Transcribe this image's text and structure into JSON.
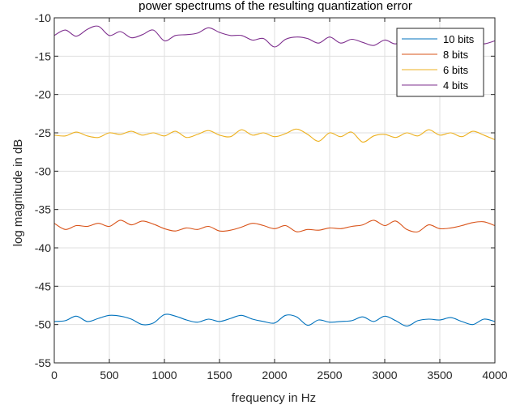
{
  "chart_data": {
    "type": "line",
    "title": "power spectrums of the resulting quantization error",
    "xlabel": "frequency in Hz",
    "ylabel": "log magnitude in dB",
    "xlim": [
      0,
      4000
    ],
    "ylim": [
      -55,
      -10
    ],
    "xticks": [
      0,
      500,
      1000,
      1500,
      2000,
      2500,
      3000,
      3500,
      4000
    ],
    "yticks": [
      -55,
      -50,
      -45,
      -40,
      -35,
      -30,
      -25,
      -20,
      -15,
      -10
    ],
    "grid": true,
    "legend_position": "top-right",
    "x": [
      0,
      100,
      200,
      300,
      400,
      500,
      600,
      700,
      800,
      900,
      1000,
      1100,
      1200,
      1300,
      1400,
      1500,
      1600,
      1700,
      1800,
      1900,
      2000,
      2100,
      2200,
      2300,
      2400,
      2500,
      2600,
      2700,
      2800,
      2900,
      3000,
      3100,
      3200,
      3300,
      3400,
      3500,
      3600,
      3700,
      3800,
      3900,
      4000
    ],
    "series": [
      {
        "name": "10 bits",
        "color": "#0072BD",
        "values": [
          -49.6,
          -49.5,
          -48.9,
          -49.6,
          -49.2,
          -48.8,
          -48.9,
          -49.3,
          -50.0,
          -49.8,
          -48.7,
          -48.9,
          -49.4,
          -49.7,
          -49.3,
          -49.6,
          -49.2,
          -48.8,
          -49.3,
          -49.6,
          -49.8,
          -48.8,
          -49.0,
          -50.1,
          -49.4,
          -49.7,
          -49.6,
          -49.5,
          -49.0,
          -49.6,
          -48.9,
          -49.5,
          -50.2,
          -49.5,
          -49.3,
          -49.4,
          -49.1,
          -49.6,
          -50.0,
          -49.3,
          -49.6
        ]
      },
      {
        "name": "8 bits",
        "color": "#D95319",
        "values": [
          -36.8,
          -37.6,
          -37.1,
          -37.2,
          -36.8,
          -37.2,
          -36.4,
          -37.0,
          -36.5,
          -36.9,
          -37.5,
          -37.8,
          -37.4,
          -37.6,
          -37.2,
          -37.8,
          -37.7,
          -37.3,
          -36.8,
          -37.1,
          -37.5,
          -37.1,
          -37.9,
          -37.6,
          -37.7,
          -37.4,
          -37.5,
          -37.2,
          -37.0,
          -36.4,
          -37.1,
          -36.5,
          -37.6,
          -37.9,
          -37.0,
          -37.5,
          -37.4,
          -37.1,
          -36.7,
          -36.6,
          -37.1
        ]
      },
      {
        "name": "6 bits",
        "color": "#EDB120",
        "values": [
          -25.3,
          -25.4,
          -24.9,
          -25.4,
          -25.6,
          -25.0,
          -25.2,
          -24.8,
          -25.3,
          -25.0,
          -25.4,
          -24.8,
          -25.6,
          -25.2,
          -24.7,
          -25.3,
          -25.5,
          -24.6,
          -25.3,
          -25.0,
          -25.5,
          -25.1,
          -24.5,
          -25.2,
          -26.1,
          -25.0,
          -25.5,
          -24.9,
          -26.2,
          -25.4,
          -25.2,
          -25.6,
          -25.0,
          -25.4,
          -24.6,
          -25.3,
          -25.0,
          -25.5,
          -24.8,
          -25.3,
          -25.9
        ]
      },
      {
        "name": "4 bits",
        "color": "#7E2F8E",
        "values": [
          -12.3,
          -11.6,
          -12.4,
          -11.5,
          -11.1,
          -12.3,
          -11.8,
          -12.6,
          -12.2,
          -11.6,
          -13.0,
          -12.3,
          -12.2,
          -12.0,
          -11.3,
          -11.9,
          -12.3,
          -12.3,
          -12.9,
          -12.7,
          -13.8,
          -12.8,
          -12.5,
          -12.7,
          -13.3,
          -12.5,
          -13.3,
          -12.8,
          -13.2,
          -13.6,
          -12.9,
          -13.4,
          -12.6,
          -12.9,
          -12.7,
          -12.5,
          -13.0,
          -12.6,
          -13.2,
          -13.4,
          -13.0
        ]
      }
    ]
  }
}
